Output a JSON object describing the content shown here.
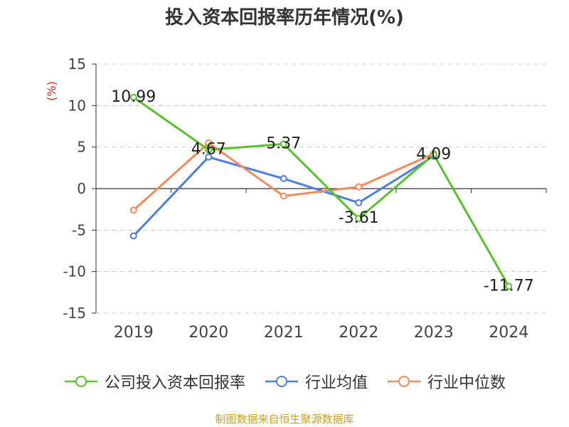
{
  "title": "投入资本回报率历年情况(%)",
  "source_note": "制图数据来自恒生聚源数据库",
  "chart_data": {
    "type": "line",
    "title": "投入资本回报率历年情况(%)",
    "ylabel": "(%)",
    "xlabel": "",
    "categories": [
      "2019",
      "2020",
      "2021",
      "2022",
      "2023",
      "2024"
    ],
    "ylim": [
      -15,
      15
    ],
    "yticks": [
      -15,
      -10,
      -5,
      0,
      5,
      10,
      15
    ],
    "grid": true,
    "legend_position": "bottom",
    "series": [
      {
        "name": "公司投入资本回报率",
        "color": "#5ac12b",
        "values": [
          10.99,
          4.67,
          5.37,
          -3.61,
          4.09,
          -11.77
        ],
        "data_labels": [
          "10.99",
          "4.67",
          "5.37",
          "-3.61",
          "4.09",
          "-11.77"
        ]
      },
      {
        "name": "行业均值",
        "color": "#4f7fdc",
        "values": [
          -5.7,
          3.8,
          1.2,
          -1.7,
          3.9,
          null
        ]
      },
      {
        "name": "行业中位数",
        "color": "#f48b5a",
        "values": [
          -2.6,
          5.5,
          -0.9,
          0.2,
          4.2,
          null
        ]
      }
    ]
  }
}
